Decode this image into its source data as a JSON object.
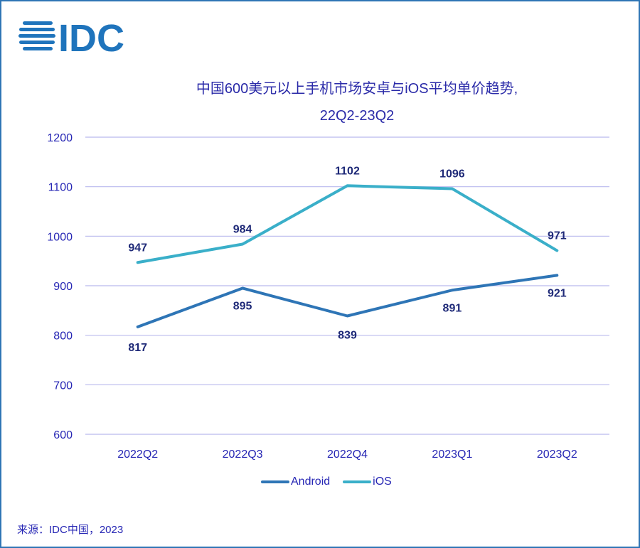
{
  "logo_text": "IDC",
  "title_line1": "中国600美元以上手机市场安卓与iOS平均单价趋势,",
  "title_line2": "22Q2-23Q2",
  "source": "来源：IDC中国，2023",
  "colors": {
    "android": "#2e75b6",
    "ios": "#3aafc9",
    "text": "#2626b4",
    "label": "#1f2a78",
    "grid": "#b9b9ee"
  },
  "chart_data": {
    "type": "line",
    "categories": [
      "2022Q2",
      "2022Q3",
      "2022Q4",
      "2023Q1",
      "2023Q2"
    ],
    "series": [
      {
        "name": "Android",
        "values": [
          817,
          895,
          839,
          891,
          921
        ]
      },
      {
        "name": "iOS",
        "values": [
          947,
          984,
          1102,
          1096,
          971
        ]
      }
    ],
    "ylim": [
      600,
      1200
    ],
    "yticks": [
      600,
      700,
      800,
      900,
      1000,
      1100,
      1200
    ],
    "grid": true,
    "legend": "bottom"
  }
}
